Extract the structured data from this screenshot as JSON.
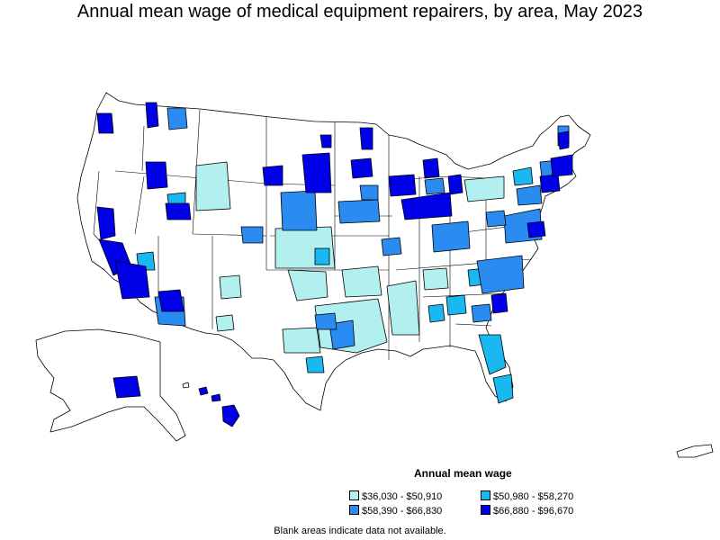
{
  "title": "Annual mean wage of medical equipment repairers, by area, May 2023",
  "legend": {
    "title": "Annual mean wage",
    "items": [
      {
        "label": "$36,030 - $50,910",
        "color": "#b2f0f0"
      },
      {
        "label": "$50,980 - $58,270",
        "color": "#19b8f0"
      },
      {
        "label": "$58,390 - $66,830",
        "color": "#2a8bf0"
      },
      {
        "label": "$66,880 - $96,670",
        "color": "#0000e8"
      }
    ]
  },
  "footnote": "Blank areas indicate data not available.",
  "colors": {
    "no_data": "#ffffff",
    "border": "#000000"
  }
}
